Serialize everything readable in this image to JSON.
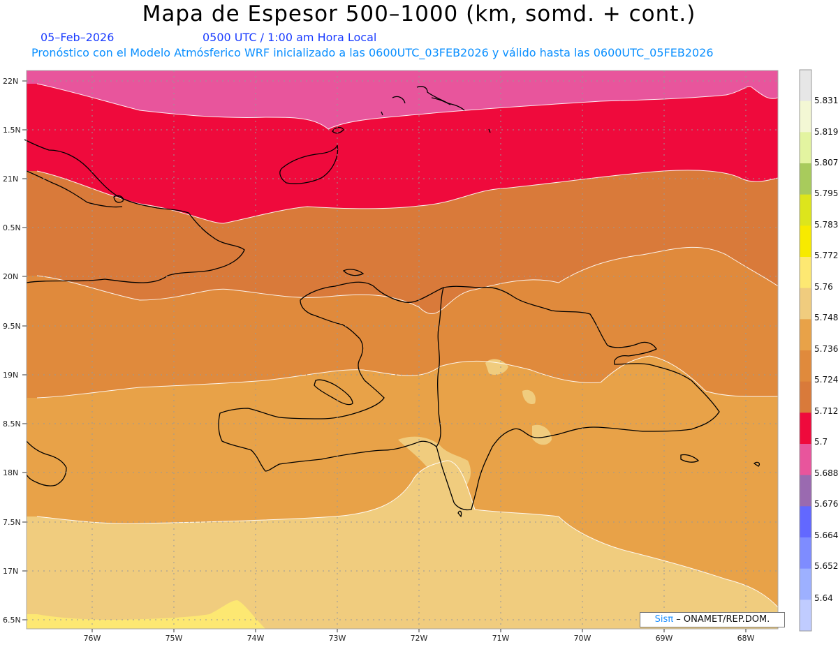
{
  "header": {
    "title": "Mapa de Espesor 500–1000 (km, somd. + cont.)",
    "date": "05–Feb–2026",
    "time": "0500 UTC / 1:00 am Hora Local",
    "description": "Pronóstico con el Modelo Atmósferico WRF inicializado a las 0600UTC_03FEB2026 y válido hasta las  0600UTC_05FEB2026"
  },
  "map": {
    "lat_labels": [
      "22N",
      "1.5N",
      "21N",
      "0.5N",
      "20N",
      "9.5N",
      "19N",
      "8.5N",
      "18N",
      "7.5N",
      "17N",
      "6.5N"
    ],
    "lon_labels": [
      "76W",
      "75W",
      "74W",
      "73W",
      "72W",
      "71W",
      "70W",
      "69W",
      "68W"
    ],
    "fill_colors": {
      "pink": "#e8559c",
      "red": "#ef0a3c",
      "dark_orange": "#d97a3a",
      "orange": "#e08a3c",
      "light_orange": "#e8a248",
      "tan": "#f0cc7e",
      "yellow": "#fde872"
    }
  },
  "colorbar": {
    "labels": [
      "5.831",
      "5.819",
      "5.807",
      "5.795",
      "5.783",
      "5.772",
      "5.76",
      "5.748",
      "5.736",
      "5.724",
      "5.712",
      "5.7",
      "5.688",
      "5.676",
      "5.664",
      "5.652",
      "5.64"
    ],
    "colors": [
      "#e6e6e6",
      "#f3f7d4",
      "#e3f4a0",
      "#a8cb5c",
      "#dde51c",
      "#f7ea00",
      "#fde872",
      "#f0cc7e",
      "#e8a248",
      "#e08a3c",
      "#d97a3a",
      "#ef0a3c",
      "#e8559c",
      "#9a6ab0",
      "#6268ff",
      "#7e8cff",
      "#9db0ff",
      "#c0ccff"
    ]
  },
  "credit": {
    "sis": "Sisπ",
    "rest": "– ONAMET/REP.DOM."
  }
}
